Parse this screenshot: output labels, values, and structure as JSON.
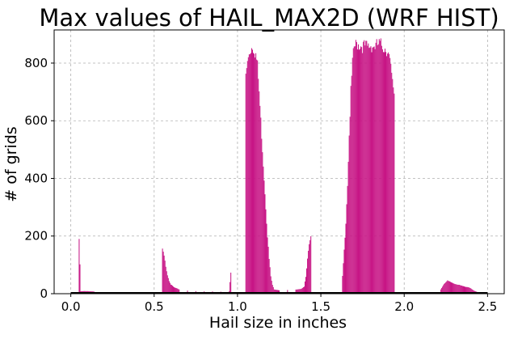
{
  "chart_data": {
    "type": "bar",
    "title": "Max values of HAIL_MAX2D (WRF HIST)",
    "xlabel": "Hail size in inches",
    "ylabel": "# of grids",
    "xlim": [
      -0.1,
      2.6
    ],
    "ylim": [
      0,
      915
    ],
    "xticks": [
      0.0,
      0.5,
      1.0,
      1.5,
      2.0,
      2.5
    ],
    "xtick_labels": [
      "0.0",
      "0.5",
      "1.0",
      "1.5",
      "2.0",
      "2.5"
    ],
    "yticks": [
      0,
      200,
      400,
      600,
      800
    ],
    "ytick_labels": [
      "0",
      "200",
      "400",
      "600",
      "800"
    ],
    "grid": true,
    "bar_color": "#c71585",
    "baseline_color": "#000000",
    "bin_width": 0.005,
    "series": [
      {
        "values": [
          {
            "x": 0.05,
            "y": 190
          },
          {
            "x": 0.06,
            "y": 8
          },
          {
            "x": 0.08,
            "y": 9
          },
          {
            "x": 0.1,
            "y": 9
          },
          {
            "x": 0.12,
            "y": 8
          },
          {
            "x": 0.14,
            "y": 7
          },
          {
            "x": 0.55,
            "y": 155
          },
          {
            "x": 0.56,
            "y": 130
          },
          {
            "x": 0.57,
            "y": 95
          },
          {
            "x": 0.58,
            "y": 65
          },
          {
            "x": 0.59,
            "y": 45
          },
          {
            "x": 0.6,
            "y": 32
          },
          {
            "x": 0.62,
            "y": 22
          },
          {
            "x": 0.65,
            "y": 15
          },
          {
            "x": 0.7,
            "y": 11
          },
          {
            "x": 0.75,
            "y": 9
          },
          {
            "x": 0.8,
            "y": 8
          },
          {
            "x": 0.85,
            "y": 8
          },
          {
            "x": 0.9,
            "y": 7
          },
          {
            "x": 0.95,
            "y": 8
          },
          {
            "x": 0.96,
            "y": 72
          },
          {
            "x": 1.05,
            "y": 760
          },
          {
            "x": 1.06,
            "y": 800
          },
          {
            "x": 1.07,
            "y": 835
          },
          {
            "x": 1.08,
            "y": 850
          },
          {
            "x": 1.09,
            "y": 860
          },
          {
            "x": 1.1,
            "y": 850
          },
          {
            "x": 1.11,
            "y": 830
          },
          {
            "x": 1.12,
            "y": 790
          },
          {
            "x": 1.13,
            "y": 700
          },
          {
            "x": 1.14,
            "y": 600
          },
          {
            "x": 1.15,
            "y": 500
          },
          {
            "x": 1.16,
            "y": 400
          },
          {
            "x": 1.17,
            "y": 300
          },
          {
            "x": 1.18,
            "y": 200
          },
          {
            "x": 1.19,
            "y": 120
          },
          {
            "x": 1.2,
            "y": 60
          },
          {
            "x": 1.21,
            "y": 30
          },
          {
            "x": 1.22,
            "y": 15
          },
          {
            "x": 1.25,
            "y": 12
          },
          {
            "x": 1.3,
            "y": 13
          },
          {
            "x": 1.35,
            "y": 14
          },
          {
            "x": 1.38,
            "y": 16
          },
          {
            "x": 1.4,
            "y": 25
          },
          {
            "x": 1.41,
            "y": 60
          },
          {
            "x": 1.42,
            "y": 120
          },
          {
            "x": 1.43,
            "y": 170
          },
          {
            "x": 1.44,
            "y": 195
          },
          {
            "x": 1.63,
            "y": 60
          },
          {
            "x": 1.64,
            "y": 150
          },
          {
            "x": 1.65,
            "y": 250
          },
          {
            "x": 1.66,
            "y": 380
          },
          {
            "x": 1.67,
            "y": 550
          },
          {
            "x": 1.68,
            "y": 700
          },
          {
            "x": 1.69,
            "y": 800
          },
          {
            "x": 1.7,
            "y": 855
          },
          {
            "x": 1.72,
            "y": 868
          },
          {
            "x": 1.75,
            "y": 860
          },
          {
            "x": 1.78,
            "y": 855
          },
          {
            "x": 1.8,
            "y": 862
          },
          {
            "x": 1.83,
            "y": 858
          },
          {
            "x": 1.85,
            "y": 865
          },
          {
            "x": 1.87,
            "y": 860
          },
          {
            "x": 1.89,
            "y": 850
          },
          {
            "x": 1.9,
            "y": 845
          },
          {
            "x": 1.91,
            "y": 820
          },
          {
            "x": 1.92,
            "y": 780
          },
          {
            "x": 1.93,
            "y": 730
          },
          {
            "x": 1.94,
            "y": 700
          },
          {
            "x": 2.22,
            "y": 15
          },
          {
            "x": 2.24,
            "y": 35
          },
          {
            "x": 2.26,
            "y": 45
          },
          {
            "x": 2.28,
            "y": 40
          },
          {
            "x": 2.3,
            "y": 35
          },
          {
            "x": 2.33,
            "y": 30
          },
          {
            "x": 2.36,
            "y": 25
          },
          {
            "x": 2.39,
            "y": 22
          },
          {
            "x": 2.42,
            "y": 10
          },
          {
            "x": 2.45,
            "y": 3
          }
        ]
      }
    ]
  }
}
